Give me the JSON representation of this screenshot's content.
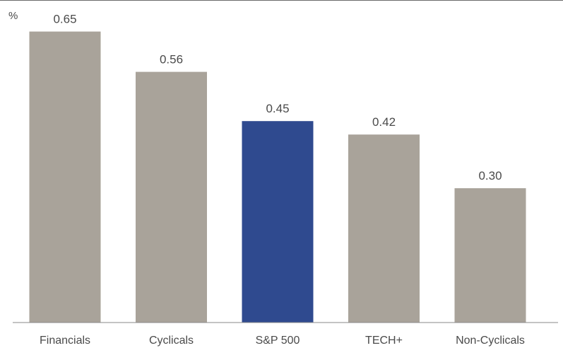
{
  "chart_data": {
    "type": "bar",
    "title": "",
    "xlabel": "",
    "ylabel": "%",
    "categories": [
      "Financials",
      "Cyclicals",
      "S&P 500",
      "TECH+",
      "Non-Cyclicals"
    ],
    "values": [
      0.65,
      0.56,
      0.45,
      0.42,
      0.3
    ],
    "value_labels": [
      "0.65",
      "0.56",
      "0.45",
      "0.42",
      "0.30"
    ],
    "ylim": [
      0,
      0.7
    ],
    "grid": false,
    "legend": "none",
    "colors": {
      "default_bar": "#a9a39a",
      "highlight_bar": "#2f4a8f",
      "text": "#4a4a4a",
      "axis": "#8a8a8a"
    },
    "highlight_category": "S&P 500"
  }
}
